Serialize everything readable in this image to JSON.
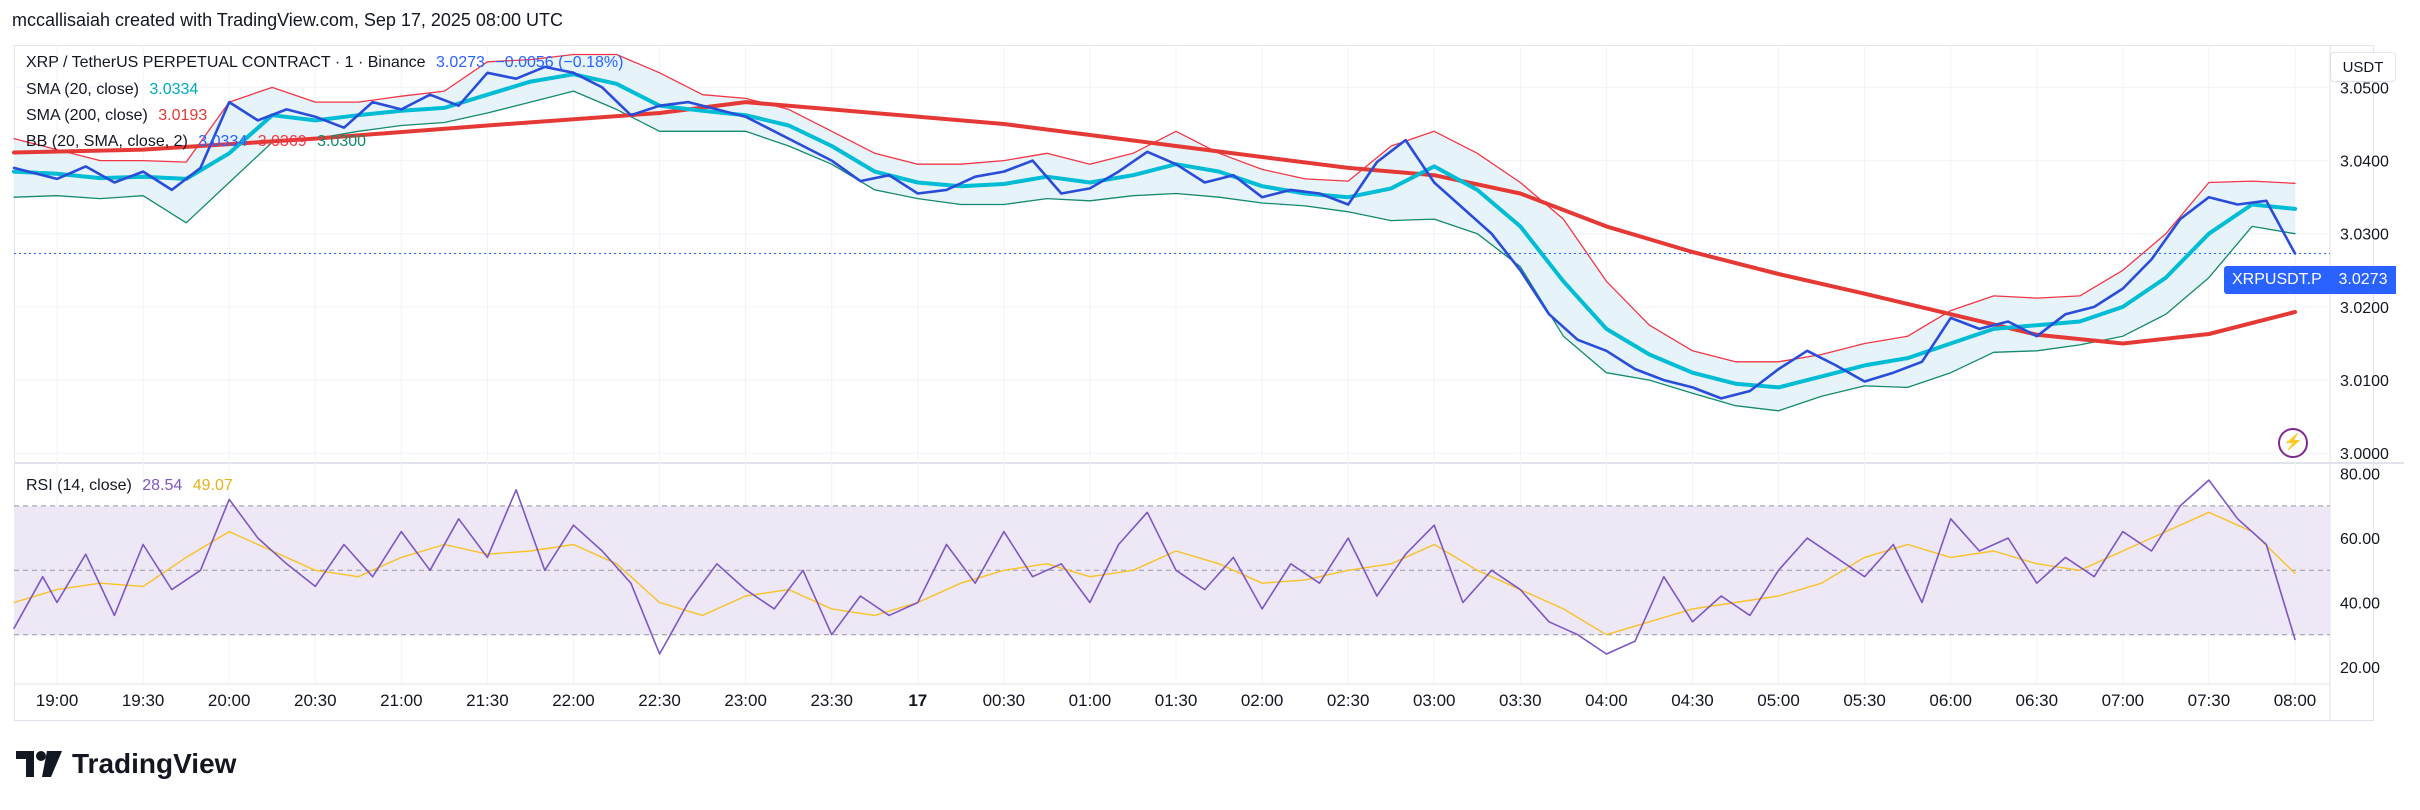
{
  "attribution": "mccallisaiah created with TradingView.com, Sep 17, 2025 08:00 UTC",
  "unit": "USDT",
  "legend": {
    "symbol": "XRP / TetherUS PERPETUAL CONTRACT · 1 · Binance",
    "price": "3.0273",
    "change": "−0.0056 (−0.18%)",
    "sma20_label": "SMA (20, close)",
    "sma20_value": "3.0334",
    "sma200_label": "SMA (200, close)",
    "sma200_value": "3.0193",
    "bb_label": "BB (20, SMA, close, 2)",
    "bb_basis": "3.0334",
    "bb_upper": "3.0369",
    "bb_lower": "3.0300",
    "rsi_label": "RSI (14, close)",
    "rsi_value": "28.54",
    "rsi_ma": "49.07"
  },
  "price_tag": {
    "symbol": "XRPUSDT.P",
    "value": "3.0273"
  },
  "brand": "TradingView",
  "colors": {
    "price": "#2a4dd9",
    "sma20": "#00bcd4",
    "sma200": "#e53935",
    "bb_upper": "#f23645",
    "bb_lower": "#138a6e",
    "bb_fill": "#e3f2f7",
    "rsi": "#7e57c2",
    "rsi_ma": "#f7c325",
    "rsi_band": "#ede7f6",
    "accent": "#2962ff"
  },
  "chart_data": {
    "type": "line",
    "x_labels": [
      "19:00",
      "19:30",
      "20:00",
      "20:30",
      "21:00",
      "21:30",
      "22:00",
      "22:30",
      "23:00",
      "23:30",
      "17",
      "00:30",
      "01:00",
      "01:30",
      "02:00",
      "02:30",
      "03:00",
      "03:30",
      "04:00",
      "04:30",
      "05:00",
      "05:30",
      "06:00",
      "06:30",
      "07:00",
      "07:30",
      "08:00"
    ],
    "price_axis": {
      "ticks": [
        "3.0500",
        "3.0400",
        "3.0300",
        "3.0200",
        "3.0100",
        "3.0000"
      ],
      "ylim": [
        2.9988,
        3.0558
      ]
    },
    "rsi_axis": {
      "ticks": [
        "80.00",
        "60.00",
        "40.00",
        "20.00"
      ],
      "ylim": [
        15,
        83
      ],
      "band": [
        30,
        70
      ],
      "midline": 50
    },
    "time_range": [
      "18:45",
      "08:00"
    ],
    "last_price_line": 3.0273,
    "series": [
      {
        "name": "XRP / TetherUS PERPETUAL CONTRACT",
        "key": "price",
        "x": [
          "18:45",
          "18:55",
          "19:00",
          "19:10",
          "19:20",
          "19:30",
          "19:40",
          "19:50",
          "20:00",
          "20:10",
          "20:20",
          "20:30",
          "20:40",
          "20:50",
          "21:00",
          "21:10",
          "21:20",
          "21:30",
          "21:40",
          "21:50",
          "22:00",
          "22:10",
          "22:20",
          "22:30",
          "22:40",
          "22:50",
          "23:00",
          "23:10",
          "23:20",
          "23:30",
          "23:40",
          "23:50",
          "00:00",
          "00:10",
          "00:20",
          "00:30",
          "00:40",
          "00:50",
          "01:00",
          "01:10",
          "01:20",
          "01:30",
          "01:40",
          "01:50",
          "02:00",
          "02:10",
          "02:20",
          "02:30",
          "02:40",
          "02:50",
          "03:00",
          "03:10",
          "03:20",
          "03:30",
          "03:40",
          "03:50",
          "04:00",
          "04:10",
          "04:20",
          "04:30",
          "04:40",
          "04:50",
          "05:00",
          "05:10",
          "05:20",
          "05:30",
          "05:40",
          "05:50",
          "06:00",
          "06:10",
          "06:20",
          "06:30",
          "06:40",
          "06:50",
          "07:00",
          "07:10",
          "07:20",
          "07:30",
          "07:40",
          "07:50",
          "08:00"
        ],
        "values": [
          3.039,
          3.038,
          3.0375,
          3.0392,
          3.037,
          3.0385,
          3.036,
          3.039,
          3.048,
          3.0455,
          3.047,
          3.046,
          3.0445,
          3.048,
          3.047,
          3.049,
          3.0475,
          3.052,
          3.0512,
          3.0528,
          3.052,
          3.05,
          3.0462,
          3.0475,
          3.048,
          3.047,
          3.046,
          3.044,
          3.042,
          3.04,
          3.0372,
          3.038,
          3.0355,
          3.036,
          3.0378,
          3.0385,
          3.04,
          3.0355,
          3.0362,
          3.0385,
          3.0412,
          3.0395,
          3.037,
          3.038,
          3.035,
          3.036,
          3.0355,
          3.034,
          3.0398,
          3.0428,
          3.037,
          3.0335,
          3.03,
          3.025,
          3.019,
          3.0155,
          3.014,
          3.0115,
          3.01,
          3.009,
          3.0075,
          3.0085,
          3.0115,
          3.014,
          3.012,
          3.0098,
          3.011,
          3.0125,
          3.0185,
          3.017,
          3.018,
          3.016,
          3.019,
          3.02,
          3.0225,
          3.0265,
          3.032,
          3.035,
          3.034,
          3.0345,
          3.0273
        ]
      },
      {
        "name": "SMA (20, close)",
        "key": "sma20",
        "x": [
          "18:45",
          "19:00",
          "19:15",
          "19:30",
          "19:45",
          "20:00",
          "20:15",
          "20:30",
          "20:45",
          "21:00",
          "21:15",
          "21:30",
          "21:45",
          "22:00",
          "22:15",
          "22:30",
          "22:45",
          "23:00",
          "23:15",
          "23:30",
          "23:45",
          "00:00",
          "00:15",
          "00:30",
          "00:45",
          "01:00",
          "01:15",
          "01:30",
          "01:45",
          "02:00",
          "02:15",
          "02:30",
          "02:45",
          "03:00",
          "03:15",
          "03:30",
          "03:45",
          "04:00",
          "04:15",
          "04:30",
          "04:45",
          "05:00",
          "05:15",
          "05:30",
          "05:45",
          "06:00",
          "06:15",
          "06:30",
          "06:45",
          "07:00",
          "07:15",
          "07:30",
          "07:45",
          "08:00"
        ],
        "values": [
          3.0385,
          3.0382,
          3.0376,
          3.0378,
          3.0375,
          3.041,
          3.0462,
          3.0455,
          3.0462,
          3.0468,
          3.0472,
          3.049,
          3.0508,
          3.0518,
          3.0505,
          3.0475,
          3.0468,
          3.0462,
          3.0448,
          3.042,
          3.0385,
          3.037,
          3.0365,
          3.0368,
          3.0378,
          3.037,
          3.038,
          3.0395,
          3.0385,
          3.0365,
          3.0355,
          3.035,
          3.0362,
          3.0392,
          3.036,
          3.031,
          3.0235,
          3.017,
          3.0135,
          3.011,
          3.0095,
          3.009,
          3.0105,
          3.012,
          3.013,
          3.015,
          3.017,
          3.0175,
          3.018,
          3.02,
          3.024,
          3.03,
          3.034,
          3.0334
        ]
      },
      {
        "name": "SMA (200, close)",
        "key": "sma200",
        "x": [
          "18:45",
          "19:30",
          "20:30",
          "21:30",
          "22:30",
          "23:00",
          "23:30",
          "00:30",
          "01:30",
          "02:30",
          "03:00",
          "03:30",
          "04:00",
          "04:30",
          "05:00",
          "05:30",
          "06:00",
          "06:30",
          "07:00",
          "07:30",
          "08:00"
        ],
        "values": [
          3.0411,
          3.0415,
          3.043,
          3.0448,
          3.0465,
          3.048,
          3.047,
          3.045,
          3.042,
          3.039,
          3.038,
          3.0355,
          3.031,
          3.0275,
          3.0245,
          3.0218,
          3.019,
          3.0162,
          3.015,
          3.0163,
          3.0193
        ]
      },
      {
        "name": "BB (20, SMA, close, 2) upper",
        "key": "bb_upper",
        "x": [
          "18:45",
          "19:00",
          "19:15",
          "19:30",
          "19:45",
          "20:00",
          "20:15",
          "20:30",
          "20:45",
          "21:00",
          "21:15",
          "21:30",
          "21:45",
          "22:00",
          "22:15",
          "22:30",
          "22:45",
          "23:00",
          "23:15",
          "23:30",
          "23:45",
          "00:00",
          "00:15",
          "00:30",
          "00:45",
          "01:00",
          "01:15",
          "01:30",
          "01:45",
          "02:00",
          "02:15",
          "02:30",
          "02:45",
          "03:00",
          "03:15",
          "03:30",
          "03:45",
          "04:00",
          "04:15",
          "04:30",
          "04:45",
          "05:00",
          "05:15",
          "05:30",
          "05:45",
          "06:00",
          "06:15",
          "06:30",
          "06:45",
          "07:00",
          "07:15",
          "07:30",
          "07:45",
          "08:00"
        ],
        "values": [
          3.043,
          3.0415,
          3.04,
          3.04,
          3.0398,
          3.048,
          3.05,
          3.048,
          3.048,
          3.0488,
          3.0495,
          3.0535,
          3.0538,
          3.0545,
          3.0545,
          3.052,
          3.049,
          3.0485,
          3.047,
          3.044,
          3.041,
          3.0395,
          3.0395,
          3.04,
          3.041,
          3.0395,
          3.041,
          3.044,
          3.041,
          3.0388,
          3.0375,
          3.0372,
          3.042,
          3.044,
          3.041,
          3.037,
          3.032,
          3.0235,
          3.0175,
          3.014,
          3.0125,
          3.0125,
          3.0135,
          3.015,
          3.016,
          3.0195,
          3.0215,
          3.0212,
          3.0215,
          3.025,
          3.03,
          3.037,
          3.0372,
          3.0369
        ]
      },
      {
        "name": "BB (20, SMA, close, 2) lower",
        "key": "bb_lower",
        "x": [
          "18:45",
          "19:00",
          "19:15",
          "19:30",
          "19:45",
          "20:00",
          "20:15",
          "20:30",
          "20:45",
          "21:00",
          "21:15",
          "21:30",
          "21:45",
          "22:00",
          "22:15",
          "22:30",
          "22:45",
          "23:00",
          "23:15",
          "23:30",
          "23:45",
          "00:00",
          "00:15",
          "00:30",
          "00:45",
          "01:00",
          "01:15",
          "01:30",
          "01:45",
          "02:00",
          "02:15",
          "02:30",
          "02:45",
          "03:00",
          "03:15",
          "03:30",
          "03:45",
          "04:00",
          "04:15",
          "04:30",
          "04:45",
          "05:00",
          "05:15",
          "05:30",
          "05:45",
          "06:00",
          "06:15",
          "06:30",
          "06:45",
          "07:00",
          "07:15",
          "07:30",
          "07:45",
          "08:00"
        ],
        "values": [
          3.035,
          3.0352,
          3.0348,
          3.0352,
          3.0315,
          3.037,
          3.0425,
          3.043,
          3.044,
          3.0448,
          3.0452,
          3.0465,
          3.048,
          3.0495,
          3.047,
          3.044,
          3.044,
          3.044,
          3.042,
          3.0395,
          3.036,
          3.0348,
          3.034,
          3.034,
          3.0348,
          3.0345,
          3.0352,
          3.0355,
          3.035,
          3.0342,
          3.0338,
          3.033,
          3.0318,
          3.032,
          3.03,
          3.0255,
          3.016,
          3.011,
          3.01,
          3.0082,
          3.0065,
          3.0058,
          3.0078,
          3.0092,
          3.009,
          3.011,
          3.0138,
          3.014,
          3.0148,
          3.016,
          3.019,
          3.024,
          3.031,
          3.03
        ]
      },
      {
        "name": "RSI (14, close)",
        "key": "rsi",
        "x": [
          "18:45",
          "18:55",
          "19:00",
          "19:10",
          "19:20",
          "19:30",
          "19:40",
          "19:50",
          "20:00",
          "20:10",
          "20:20",
          "20:30",
          "20:40",
          "20:50",
          "21:00",
          "21:10",
          "21:20",
          "21:30",
          "21:40",
          "21:50",
          "22:00",
          "22:10",
          "22:20",
          "22:30",
          "22:40",
          "22:50",
          "23:00",
          "23:10",
          "23:20",
          "23:30",
          "23:40",
          "23:50",
          "00:00",
          "00:10",
          "00:20",
          "00:30",
          "00:40",
          "00:50",
          "01:00",
          "01:10",
          "01:20",
          "01:30",
          "01:40",
          "01:50",
          "02:00",
          "02:10",
          "02:20",
          "02:30",
          "02:40",
          "02:50",
          "03:00",
          "03:10",
          "03:20",
          "03:30",
          "03:40",
          "03:50",
          "04:00",
          "04:10",
          "04:20",
          "04:30",
          "04:40",
          "04:50",
          "05:00",
          "05:10",
          "05:20",
          "05:30",
          "05:40",
          "05:50",
          "06:00",
          "06:10",
          "06:20",
          "06:30",
          "06:40",
          "06:50",
          "07:00",
          "07:10",
          "07:20",
          "07:30",
          "07:40",
          "07:50",
          "08:00"
        ],
        "values": [
          32,
          48,
          40,
          55,
          36,
          58,
          44,
          50,
          72,
          60,
          52,
          45,
          58,
          48,
          62,
          50,
          66,
          54,
          75,
          50,
          64,
          56,
          46,
          24,
          40,
          52,
          44,
          38,
          50,
          30,
          42,
          36,
          40,
          58,
          46,
          62,
          48,
          52,
          40,
          58,
          68,
          50,
          44,
          54,
          38,
          52,
          46,
          60,
          42,
          55,
          64,
          40,
          50,
          44,
          34,
          30,
          24,
          28,
          48,
          34,
          42,
          36,
          50,
          60,
          54,
          48,
          58,
          40,
          66,
          56,
          60,
          46,
          54,
          48,
          62,
          56,
          70,
          78,
          66,
          58,
          28.54
        ]
      },
      {
        "name": "RSI-based MA",
        "key": "rsi_ma",
        "x": [
          "18:45",
          "19:00",
          "19:15",
          "19:30",
          "19:45",
          "20:00",
          "20:15",
          "20:30",
          "20:45",
          "21:00",
          "21:15",
          "21:30",
          "21:45",
          "22:00",
          "22:15",
          "22:30",
          "22:45",
          "23:00",
          "23:15",
          "23:30",
          "23:45",
          "00:00",
          "00:15",
          "00:30",
          "00:45",
          "01:00",
          "01:15",
          "01:30",
          "01:45",
          "02:00",
          "02:15",
          "02:30",
          "02:45",
          "03:00",
          "03:15",
          "03:30",
          "03:45",
          "04:00",
          "04:15",
          "04:30",
          "04:45",
          "05:00",
          "05:15",
          "05:30",
          "05:45",
          "06:00",
          "06:15",
          "06:30",
          "06:45",
          "07:00",
          "07:15",
          "07:30",
          "07:45",
          "08:00"
        ],
        "values": [
          40,
          44,
          46,
          45,
          54,
          62,
          56,
          50,
          48,
          54,
          58,
          55,
          56,
          58,
          52,
          40,
          36,
          42,
          44,
          38,
          36,
          40,
          46,
          50,
          52,
          48,
          50,
          56,
          52,
          46,
          47,
          50,
          52,
          58,
          50,
          44,
          38,
          30,
          34,
          38,
          40,
          42,
          46,
          54,
          58,
          54,
          56,
          52,
          50,
          56,
          62,
          68,
          62,
          49.07
        ]
      }
    ]
  }
}
